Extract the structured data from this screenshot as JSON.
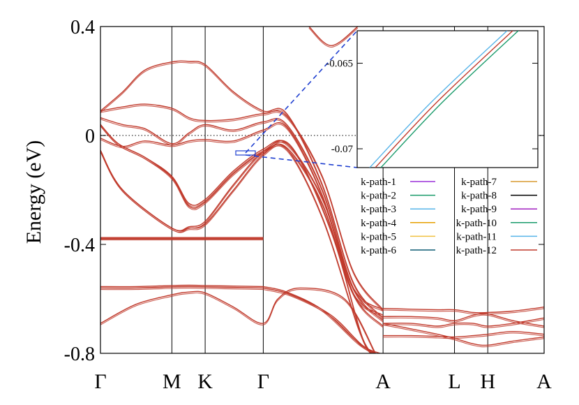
{
  "chart_data": {
    "type": "line",
    "title": "",
    "xlabel": "",
    "ylabel": "Energy (eV)",
    "ylim": [
      -0.8,
      0.4
    ],
    "yticks": [
      {
        "value": 0.4,
        "label": "0.4"
      },
      {
        "value": 0,
        "label": "0"
      },
      {
        "value": -0.4,
        "label": "-0.4"
      },
      {
        "value": -0.8,
        "label": "-0.8"
      }
    ],
    "xlim": [
      0,
      1
    ],
    "high_symmetry_points": [
      {
        "label": "Γ",
        "pos": 0.0
      },
      {
        "label": "M",
        "pos": 0.161
      },
      {
        "label": "K",
        "pos": 0.236
      },
      {
        "label": "Γ",
        "pos": 0.367
      },
      {
        "label": "A",
        "pos": 0.637
      },
      {
        "label": "L",
        "pos": 0.798
      },
      {
        "label": "H",
        "pos": 0.873
      },
      {
        "label": "A",
        "pos": 1.0
      }
    ],
    "fermi_level": 0,
    "band_color": "#c0392b",
    "bands": [
      {
        "x": [
          0,
          0.08,
          0.161,
          0.2,
          0.236,
          0.3,
          0.367
        ],
        "y": [
          -0.555,
          -0.555,
          -0.551,
          -0.55,
          -0.551,
          -0.553,
          -0.555
        ]
      },
      {
        "x": [
          0,
          0.08,
          0.161,
          0.2,
          0.236,
          0.3,
          0.367
        ],
        "y": [
          -0.56,
          -0.56,
          -0.556,
          -0.555,
          -0.556,
          -0.558,
          -0.56
        ]
      },
      {
        "x": [
          0,
          0.08,
          0.161,
          0.2,
          0.236,
          0.3,
          0.367
        ],
        "y": [
          -0.375,
          -0.375,
          -0.375,
          -0.375,
          -0.375,
          -0.375,
          -0.375
        ]
      },
      {
        "x": [
          0,
          0.08,
          0.161,
          0.2,
          0.236,
          0.3,
          0.367
        ],
        "y": [
          -0.378,
          -0.378,
          -0.378,
          -0.378,
          -0.378,
          -0.378,
          -0.378
        ]
      },
      {
        "x": [
          0,
          0.08,
          0.161,
          0.2,
          0.236,
          0.3,
          0.367,
          0.4,
          0.45,
          0.55,
          0.62
        ],
        "y": [
          -0.69,
          -0.62,
          -0.585,
          -0.575,
          -0.578,
          -0.63,
          -0.69,
          -0.6,
          -0.56,
          -0.6,
          -0.8
        ]
      },
      {
        "x": [
          0.367,
          0.42,
          0.5,
          0.58,
          0.62
        ],
        "y": [
          -0.555,
          -0.575,
          -0.64,
          -0.76,
          -0.8
        ]
      },
      {
        "x": [
          0.367,
          0.43,
          0.52,
          0.59,
          0.63
        ],
        "y": [
          -0.56,
          -0.585,
          -0.66,
          -0.77,
          -0.8
        ]
      },
      {
        "x": [
          0,
          0.05,
          0.161,
          0.2,
          0.236,
          0.3,
          0.367,
          0.42,
          0.5,
          0.58,
          0.61
        ],
        "y": [
          -0.055,
          -0.2,
          -0.34,
          -0.34,
          -0.325,
          -0.2,
          -0.07,
          -0.05,
          -0.3,
          -0.7,
          -0.8
        ]
      },
      {
        "x": [
          0,
          0.05,
          0.161,
          0.2,
          0.236,
          0.3,
          0.367,
          0.43,
          0.52,
          0.59,
          0.62
        ],
        "y": [
          -0.055,
          -0.2,
          -0.34,
          -0.335,
          -0.315,
          -0.18,
          -0.06,
          -0.04,
          -0.35,
          -0.74,
          -0.8
        ]
      },
      {
        "x": [
          0,
          0.04,
          0.1,
          0.161,
          0.2,
          0.236,
          0.3,
          0.367,
          0.42,
          0.5,
          0.57,
          0.637
        ],
        "y": [
          0.04,
          -0.03,
          -0.08,
          -0.15,
          -0.25,
          -0.235,
          -0.13,
          -0.05,
          -0.03,
          -0.23,
          -0.56,
          -0.64
        ]
      },
      {
        "x": [
          0,
          0.04,
          0.1,
          0.161,
          0.2,
          0.236,
          0.3,
          0.367,
          0.42,
          0.5,
          0.57,
          0.637
        ],
        "y": [
          0.04,
          -0.03,
          -0.08,
          -0.155,
          -0.26,
          -0.245,
          -0.14,
          -0.06,
          -0.045,
          -0.25,
          -0.58,
          -0.66
        ]
      },
      {
        "x": [
          0,
          0.05,
          0.1,
          0.161,
          0.2,
          0.236,
          0.3,
          0.367,
          0.42,
          0.5,
          0.57,
          0.637
        ],
        "y": [
          0.09,
          0.105,
          0.115,
          0.1,
          0.065,
          0.055,
          0.06,
          0.08,
          0.07,
          -0.15,
          -0.5,
          -0.64
        ]
      },
      {
        "x": [
          0,
          0.05,
          0.1,
          0.161,
          0.2,
          0.236,
          0.3,
          0.367,
          0.42,
          0.5,
          0.57,
          0.637
        ],
        "y": [
          0.065,
          0.04,
          0.025,
          -0.03,
          0.01,
          0.04,
          0.02,
          0.05,
          0.04,
          -0.2,
          -0.56,
          -0.68
        ]
      },
      {
        "x": [
          0,
          0.05,
          0.1,
          0.161,
          0.2,
          0.236,
          0.3,
          0.367,
          0.42,
          0.5,
          0.57,
          0.637
        ],
        "y": [
          -0.01,
          -0.04,
          -0.02,
          -0.035,
          -0.02,
          -0.015,
          -0.02,
          0.02,
          0.03,
          -0.22,
          -0.58,
          -0.7
        ]
      },
      {
        "x": [
          0,
          0.05,
          0.1,
          0.161,
          0.2,
          0.236,
          0.3,
          0.367,
          0.42,
          0.5,
          0.57,
          0.637
        ],
        "y": [
          0.09,
          0.16,
          0.24,
          0.27,
          0.272,
          0.26,
          0.16,
          0.09,
          0.08,
          -0.18,
          -0.54,
          -0.67
        ]
      },
      {
        "x": [
          0.47,
          0.52,
          0.58
        ],
        "y": [
          0.4,
          0.33,
          0.4
        ]
      },
      {
        "x": [
          0.637,
          0.7,
          0.76,
          0.798,
          0.84,
          0.873,
          0.93,
          1.0
        ],
        "y": [
          -0.635,
          -0.638,
          -0.64,
          -0.64,
          -0.65,
          -0.65,
          -0.645,
          -0.63
        ]
      },
      {
        "x": [
          0.637,
          0.7,
          0.76,
          0.798,
          0.84,
          0.873,
          0.93,
          1.0
        ],
        "y": [
          -0.665,
          -0.665,
          -0.67,
          -0.68,
          -0.66,
          -0.655,
          -0.68,
          -0.7
        ]
      },
      {
        "x": [
          0.637,
          0.7,
          0.76,
          0.798,
          0.84,
          0.873,
          0.93,
          1.0
        ],
        "y": [
          -0.69,
          -0.69,
          -0.7,
          -0.69,
          -0.69,
          -0.7,
          -0.69,
          -0.67
        ]
      },
      {
        "x": [
          0.637,
          0.7,
          0.76,
          0.798,
          0.84,
          0.873,
          0.93,
          1.0
        ],
        "y": [
          -0.735,
          -0.735,
          -0.738,
          -0.74,
          -0.735,
          -0.73,
          -0.72,
          -0.73
        ]
      },
      {
        "x": [
          0.637,
          0.7,
          0.76,
          0.798,
          0.84,
          0.873,
          0.93,
          1.0
        ],
        "y": [
          -0.69,
          -0.71,
          -0.73,
          -0.745,
          -0.765,
          -0.77,
          -0.755,
          -0.74
        ]
      }
    ],
    "legend": {
      "placement": "right",
      "entries": [
        {
          "label": "k-path-1",
          "color": "#9b30d9"
        },
        {
          "label": "k-path-2",
          "color": "#1a9b6b"
        },
        {
          "label": "k-path-3",
          "color": "#56b4e9"
        },
        {
          "label": "k-path-4",
          "color": "#e69f00"
        },
        {
          "label": "k-path-5",
          "color": "#f0c040"
        },
        {
          "label": "k-path-6",
          "color": "#0b5c73"
        },
        {
          "label": "k-path-7",
          "color": "#d99b30"
        },
        {
          "label": "k-path-8",
          "color": "#000000"
        },
        {
          "label": "k-path-9",
          "color": "#a020c0"
        },
        {
          "label": "k-path-10",
          "color": "#1a9b6b"
        },
        {
          "label": "k-path-11",
          "color": "#56b4e9"
        },
        {
          "label": "k-path-12",
          "color": "#c0392b"
        }
      ]
    },
    "inset": {
      "yticks": [
        {
          "value": -0.065,
          "label": "-0.065"
        },
        {
          "value": -0.07,
          "label": "-0.07"
        }
      ],
      "ylim": [
        -0.0711,
        -0.0631
      ],
      "lines": [
        {
          "color": "#56b4e9",
          "y_start": -0.0711,
          "y_end": -0.0631
        },
        {
          "color": "#c0392b",
          "y_start": -0.0711,
          "y_end": -0.0631
        },
        {
          "color": "#1a9b6b",
          "y_start": -0.0711,
          "y_end": -0.0631
        }
      ]
    }
  }
}
